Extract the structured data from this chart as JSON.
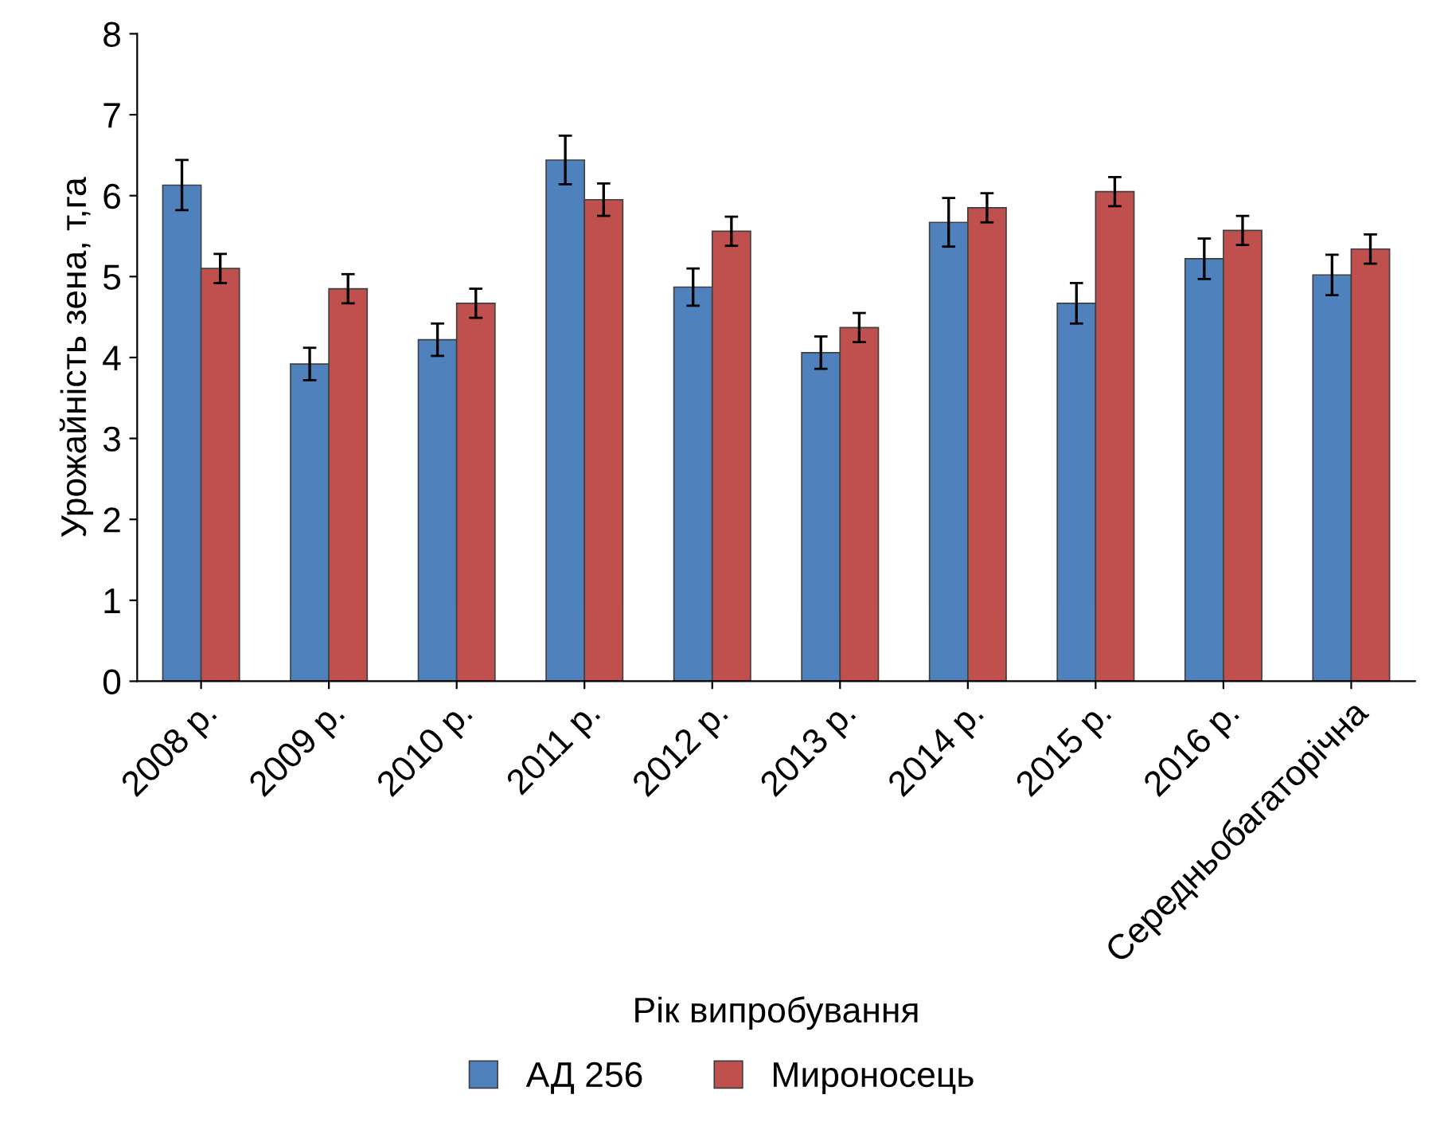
{
  "chart_data": {
    "type": "bar",
    "xlabel": "Рік випробування",
    "ylabel": "Урожайність зена, т,га",
    "categories": [
      "2008 р.",
      "2009 р.",
      "2010 р.",
      "2011 р.",
      "2012 р.",
      "2013 р.",
      "2014 р.",
      "2015 р.",
      "2016 р.",
      "Середньобагаторічна"
    ],
    "series": [
      {
        "name": "АД 256",
        "color": "#4f81bd",
        "values": [
          6.13,
          3.92,
          4.22,
          6.44,
          4.87,
          4.06,
          5.67,
          4.67,
          5.22,
          5.02
        ],
        "errors": [
          0.31,
          0.2,
          0.2,
          0.3,
          0.23,
          0.2,
          0.3,
          0.25,
          0.25,
          0.25
        ]
      },
      {
        "name": "Мироносець",
        "color": "#c0504d",
        "values": [
          5.1,
          4.85,
          4.67,
          5.95,
          5.56,
          4.37,
          5.85,
          6.05,
          5.57,
          5.34
        ],
        "errors": [
          0.18,
          0.18,
          0.18,
          0.2,
          0.18,
          0.18,
          0.18,
          0.18,
          0.18,
          0.18
        ]
      }
    ],
    "ylim": [
      0,
      8
    ],
    "yticks": [
      0,
      1,
      2,
      3,
      4,
      5,
      6,
      7,
      8
    ],
    "grid": false,
    "legend": "bottom"
  }
}
